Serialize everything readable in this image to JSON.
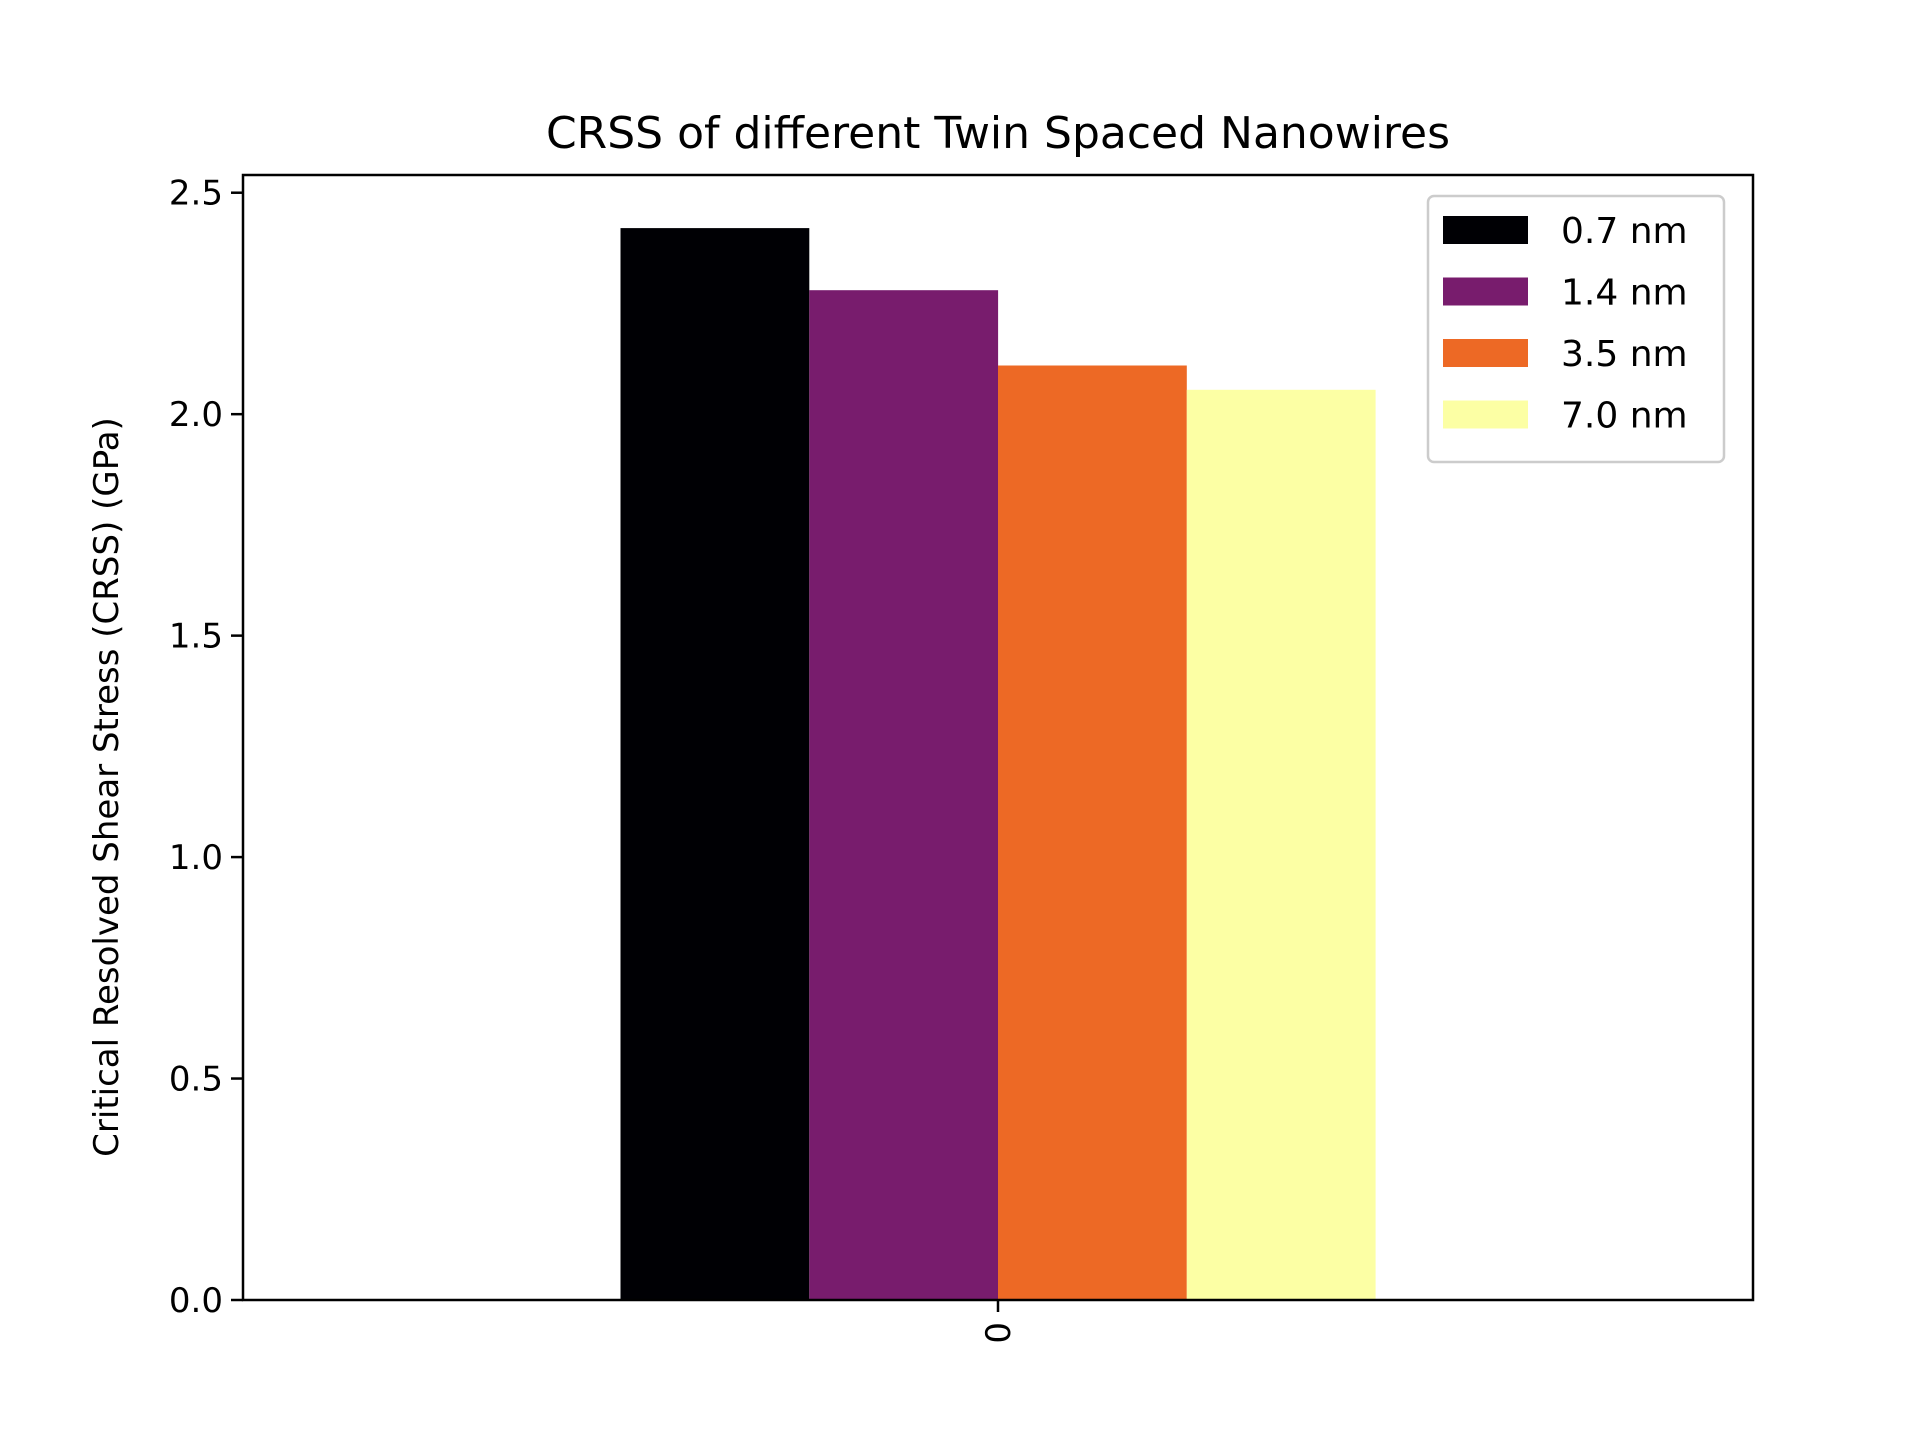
{
  "chart_data": {
    "type": "bar",
    "title": "CRSS of different Twin Spaced Nanowires",
    "xlabel": "",
    "ylabel": "Critical Resolved Shear Stress (CRSS) (GPa)",
    "categories": [
      "0"
    ],
    "ylim": [
      0,
      2.54
    ],
    "yticks": [
      "0.0",
      "0.5",
      "1.0",
      "1.5",
      "2.0",
      "2.5"
    ],
    "grid": false,
    "legend_position": "top-right",
    "series": [
      {
        "name": "0.7 nm",
        "values": [
          2.42
        ],
        "color": "#000004"
      },
      {
        "name": "1.4 nm",
        "values": [
          2.28
        ],
        "color": "#781c6d"
      },
      {
        "name": "3.5 nm",
        "values": [
          2.11
        ],
        "color": "#ed6925"
      },
      {
        "name": "7.0 nm",
        "values": [
          2.055
        ],
        "color": "#fcffa4"
      }
    ]
  }
}
